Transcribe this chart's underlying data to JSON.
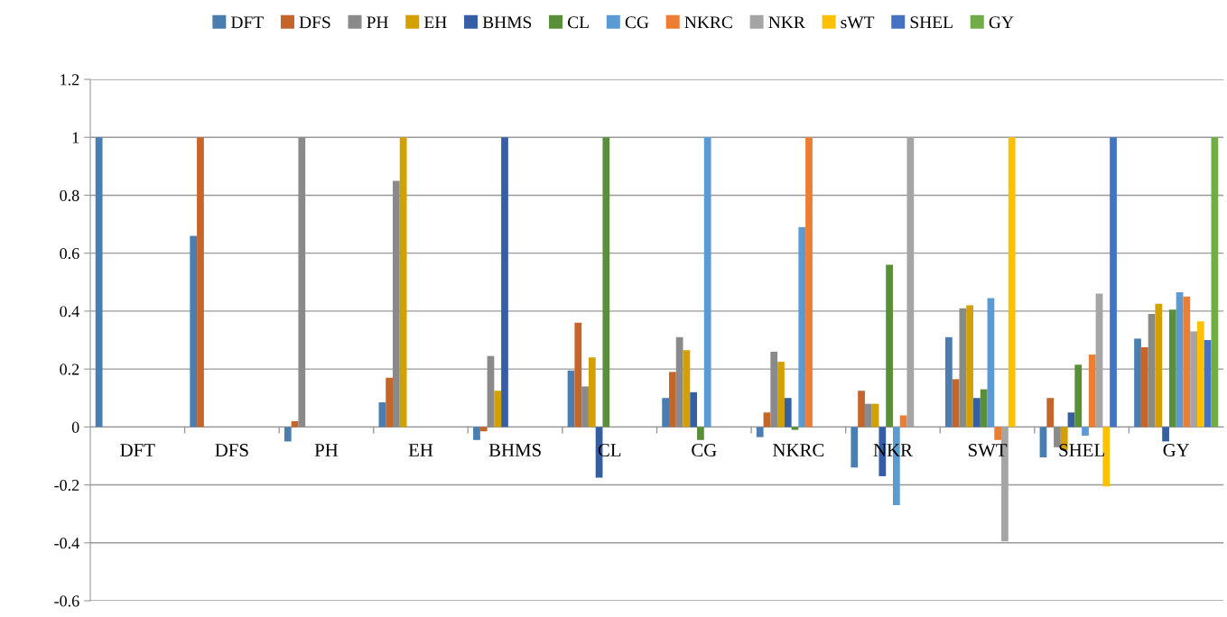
{
  "chart_data": {
    "type": "bar",
    "categories": [
      "DFT",
      "DFS",
      "PH",
      "EH",
      "BHMS",
      "CL",
      "CG",
      "NKRC",
      "NKR",
      "SWT",
      "SHEL",
      "GY"
    ],
    "series": [
      {
        "name": "DFT",
        "color": "#4a7eb0",
        "values": [
          1,
          0.66,
          -0.05,
          0.085,
          -0.045,
          0.195,
          0.1,
          -0.035,
          -0.14,
          0.31,
          -0.105,
          0.305
        ]
      },
      {
        "name": "DFS",
        "color": "#c5652a",
        "values": [
          null,
          1,
          0.02,
          0.17,
          -0.015,
          0.36,
          0.19,
          0.05,
          0.125,
          0.165,
          0.1,
          0.275
        ]
      },
      {
        "name": "PH",
        "color": "#8a8a8a",
        "values": [
          null,
          null,
          1,
          0.85,
          0.245,
          0.14,
          0.31,
          0.26,
          0.08,
          0.41,
          -0.07,
          0.39
        ]
      },
      {
        "name": "EH",
        "color": "#d4a000",
        "values": [
          null,
          null,
          null,
          1,
          0.125,
          0.24,
          0.265,
          0.225,
          0.08,
          0.42,
          -0.08,
          0.425
        ]
      },
      {
        "name": "BHMS",
        "color": "#355fa3",
        "values": [
          null,
          null,
          null,
          null,
          1,
          -0.175,
          0.12,
          0.1,
          -0.17,
          0.1,
          0.05,
          -0.05
        ]
      },
      {
        "name": "CL",
        "color": "#5a8f3a",
        "values": [
          null,
          null,
          null,
          null,
          null,
          1,
          -0.045,
          -0.01,
          0.56,
          0.13,
          0.215,
          0.405
        ]
      },
      {
        "name": "CG",
        "color": "#5b9bd5",
        "values": [
          null,
          null,
          null,
          null,
          null,
          null,
          1,
          0.69,
          -0.27,
          0.445,
          -0.03,
          0.465
        ]
      },
      {
        "name": "NKRC",
        "color": "#ed7d31",
        "values": [
          null,
          null,
          null,
          null,
          null,
          null,
          null,
          1,
          0.04,
          -0.045,
          0.25,
          0.45
        ]
      },
      {
        "name": "NKR",
        "color": "#a5a5a5",
        "values": [
          null,
          null,
          null,
          null,
          null,
          null,
          null,
          null,
          1,
          -0.395,
          0.46,
          0.33
        ]
      },
      {
        "name": "sWT",
        "color": "#ffc000",
        "values": [
          null,
          null,
          null,
          null,
          null,
          null,
          null,
          null,
          null,
          1,
          -0.205,
          0.365
        ]
      },
      {
        "name": "SHEL",
        "color": "#4472c4",
        "values": [
          null,
          null,
          null,
          null,
          null,
          null,
          null,
          null,
          null,
          null,
          1,
          0.3
        ]
      },
      {
        "name": "GY",
        "color": "#70ad47",
        "values": [
          null,
          null,
          null,
          null,
          null,
          null,
          null,
          null,
          null,
          null,
          null,
          1
        ]
      }
    ],
    "ylim": [
      -0.6,
      1.2
    ],
    "yticks": [
      -0.6,
      -0.4,
      -0.2,
      0,
      0.2,
      0.4,
      0.6,
      0.8,
      1,
      1.2
    ],
    "grid": "y",
    "legend": "top"
  }
}
